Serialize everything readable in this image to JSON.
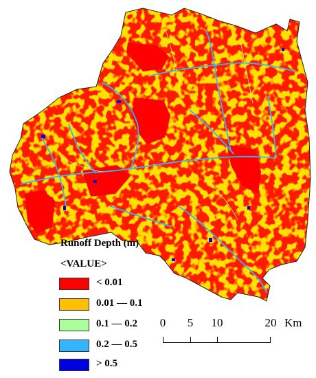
{
  "map": {
    "colors": {
      "background": "#ffffff",
      "boundary": "#222222"
    }
  },
  "legend": {
    "title": "Runoff Depth (m)",
    "subtitle": "<VALUE>",
    "items": [
      {
        "label": "< 0.01",
        "color": "#ff0000"
      },
      {
        "label": "0.01 — 0.1",
        "color": "#ffc000"
      },
      {
        "label": "0.1 — 0.2",
        "color": "#aaff99"
      },
      {
        "label": "0.2 — 0.5",
        "color": "#33b5ff"
      },
      {
        "label": "> 0.5",
        "color": "#0000e0"
      }
    ]
  },
  "scale_bar": {
    "ticks": [
      "0",
      "5",
      "10",
      "20"
    ],
    "unit": "Km"
  }
}
